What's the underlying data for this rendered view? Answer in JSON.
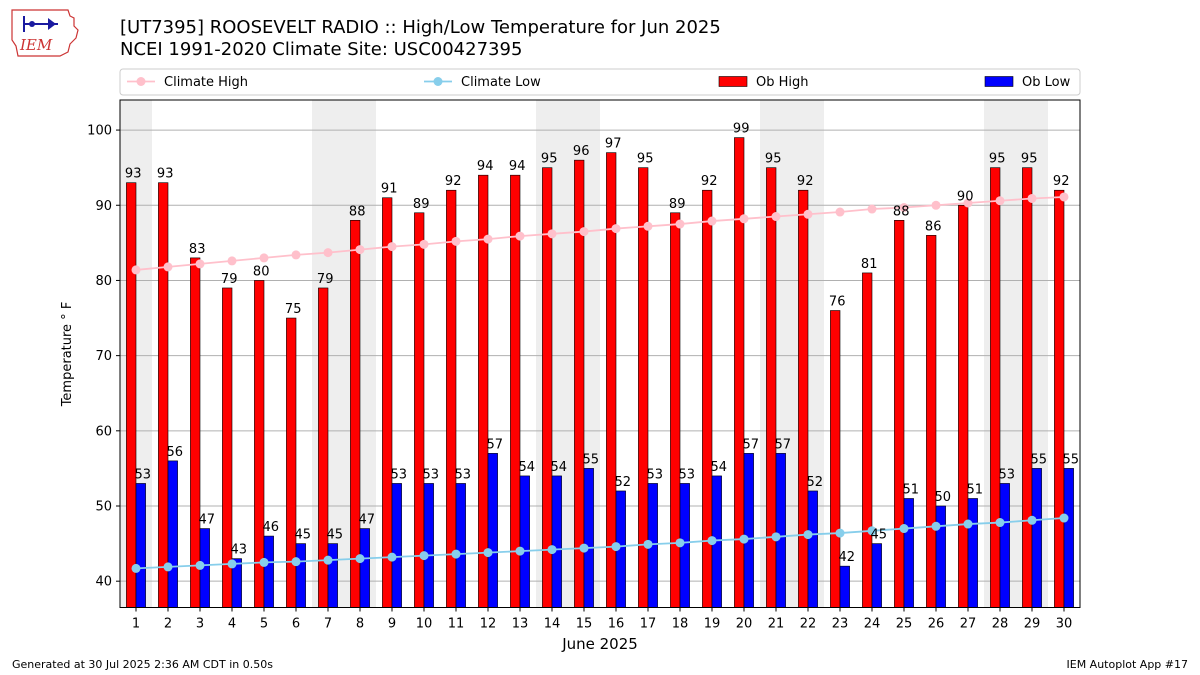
{
  "header": {
    "title_line1": "[UT7395] ROOSEVELT RADIO :: High/Low Temperature for Jun 2025",
    "title_line2": "NCEI 1991-2020 Climate Site: USC00427395",
    "logo_text": "IEM"
  },
  "footer": {
    "left": "Generated at 30 Jul 2025 2:36 AM CDT in 0.50s",
    "right": "IEM Autoplot App #17"
  },
  "colors": {
    "ob_high": "#ff0000",
    "ob_low": "#0000ff",
    "climate_high": "#ffc0cb",
    "climate_low": "#87ceeb",
    "weekend_band": "#eeeeee",
    "grid": "#b0b0b0"
  },
  "chart_data": {
    "type": "bar",
    "xlabel": "June 2025",
    "ylabel": "Temperature ° F",
    "categories": [
      "1",
      "2",
      "3",
      "4",
      "5",
      "6",
      "7",
      "8",
      "9",
      "10",
      "11",
      "12",
      "13",
      "14",
      "15",
      "16",
      "17",
      "18",
      "19",
      "20",
      "21",
      "22",
      "23",
      "24",
      "25",
      "26",
      "27",
      "28",
      "29",
      "30"
    ],
    "ylim": [
      36.5,
      104
    ],
    "yticks": [
      40,
      50,
      60,
      70,
      80,
      90,
      100
    ],
    "grid": "horizontal",
    "legend_placement": "top",
    "weekend_days": [
      1,
      7,
      8,
      14,
      15,
      21,
      22,
      28,
      29
    ],
    "series": [
      {
        "name": "Ob High",
        "kind": "bar",
        "values": [
          93,
          93,
          83,
          79,
          80,
          75,
          79,
          88,
          91,
          89,
          92,
          94,
          94,
          95,
          96,
          97,
          95,
          89,
          92,
          99,
          95,
          92,
          76,
          81,
          88,
          86,
          90,
          95,
          95,
          92
        ]
      },
      {
        "name": "Ob Low",
        "kind": "bar",
        "values": [
          53,
          56,
          47,
          43,
          46,
          45,
          45,
          47,
          53,
          53,
          53,
          57,
          54,
          54,
          55,
          52,
          53,
          53,
          54,
          57,
          57,
          52,
          42,
          45,
          51,
          50,
          51,
          53,
          55,
          55
        ]
      },
      {
        "name": "Climate High",
        "kind": "line",
        "values": [
          81.4,
          81.8,
          82.2,
          82.6,
          83.0,
          83.4,
          83.7,
          84.1,
          84.5,
          84.8,
          85.2,
          85.5,
          85.9,
          86.2,
          86.5,
          86.9,
          87.2,
          87.5,
          87.9,
          88.2,
          88.5,
          88.8,
          89.1,
          89.5,
          89.7,
          90.0,
          90.3,
          90.6,
          90.9,
          91.1
        ]
      },
      {
        "name": "Climate Low",
        "kind": "line",
        "values": [
          41.7,
          41.9,
          42.1,
          42.3,
          42.5,
          42.6,
          42.8,
          43.0,
          43.2,
          43.4,
          43.6,
          43.8,
          44.0,
          44.2,
          44.4,
          44.6,
          44.9,
          45.1,
          45.4,
          45.6,
          45.9,
          46.2,
          46.4,
          46.7,
          47.0,
          47.3,
          47.6,
          47.8,
          48.1,
          48.4
        ]
      }
    ]
  }
}
